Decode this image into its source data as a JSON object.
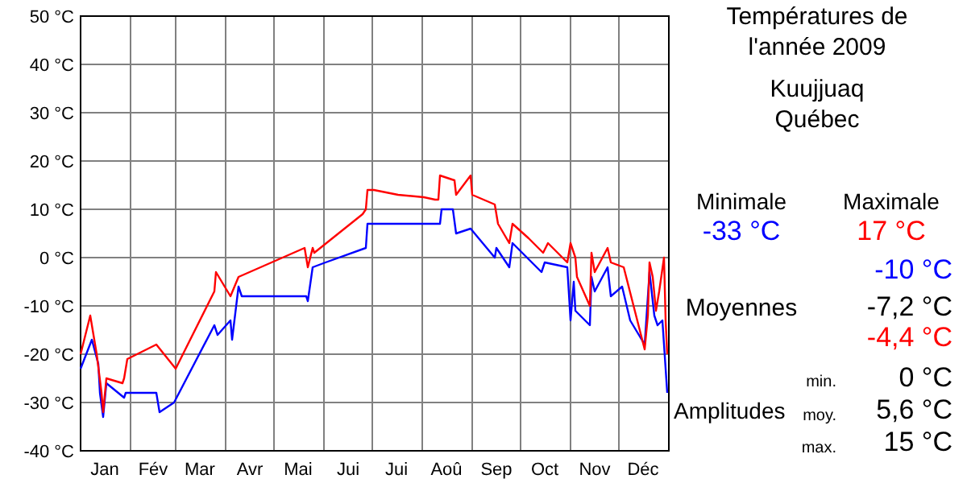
{
  "chart_data": {
    "type": "line",
    "title": "Températures de\nl'année 2009",
    "subtitle": "Kuujjuaq\nQuébec",
    "xlim": [
      "2009-01-01",
      "2010-01-01"
    ],
    "xticks": [
      {
        "value": "2009-01-01",
        "label": null
      },
      {
        "value": "2009-01-16",
        "label": "Jan"
      },
      {
        "value": "2009-02-01",
        "label": null
      },
      {
        "value": "2009-02-15",
        "label": "Fév"
      },
      {
        "value": "2009-03-01",
        "label": null
      },
      {
        "value": "2009-03-16",
        "label": "Mar"
      },
      {
        "value": "2009-04-01",
        "label": null
      },
      {
        "value": "2009-04-16",
        "label": "Avr"
      },
      {
        "value": "2009-05-01",
        "label": null
      },
      {
        "value": "2009-05-16",
        "label": "Mai"
      },
      {
        "value": "2009-06-01",
        "label": null
      },
      {
        "value": "2009-06-16",
        "label": "Jui"
      },
      {
        "value": "2009-07-01",
        "label": null
      },
      {
        "value": "2009-07-16",
        "label": "Jui"
      },
      {
        "value": "2009-08-01",
        "label": null
      },
      {
        "value": "2009-08-16",
        "label": "Aoû"
      },
      {
        "value": "2009-09-01",
        "label": null
      },
      {
        "value": "2009-09-16",
        "label": "Sep"
      },
      {
        "value": "2009-10-01",
        "label": null
      },
      {
        "value": "2009-10-16",
        "label": "Oct"
      },
      {
        "value": "2009-11-01",
        "label": null
      },
      {
        "value": "2009-11-16",
        "label": "Nov"
      },
      {
        "value": "2009-12-01",
        "label": null
      },
      {
        "value": "2009-12-16",
        "label": "Déc"
      },
      {
        "value": "2010-01-01",
        "label": null
      }
    ],
    "ylim": [
      -40,
      50
    ],
    "yticks": [
      {
        "value": -40,
        "label": "-40 °C"
      },
      {
        "value": -30,
        "label": "-30 °C"
      },
      {
        "value": -20,
        "label": "-20 °C"
      },
      {
        "value": -10,
        "label": "-10 °C"
      },
      {
        "value": 0,
        "label": "0 °C"
      },
      {
        "value": 10,
        "label": "10 °C"
      },
      {
        "value": 20,
        "label": "20 °C"
      },
      {
        "value": 30,
        "label": "30 °C"
      },
      {
        "value": 40,
        "label": "40 °C"
      },
      {
        "value": 50,
        "label": "50 °C"
      }
    ],
    "grid": true,
    "marker": "none",
    "line_style": "solid",
    "series": [
      {
        "color": "#0000ff",
        "x": [
          "2009-01-01",
          "2009-01-08",
          "2009-01-12",
          "2009-01-13",
          "2009-01-15",
          "2009-01-17",
          "2009-01-28",
          "2009-01-29",
          "2009-02-17",
          "2009-02-19",
          "2009-02-28",
          "2009-03-25",
          "2009-03-27",
          "2009-04-04",
          "2009-04-05",
          "2009-04-09",
          "2009-04-11",
          "2009-04-12",
          "2009-05-21",
          "2009-05-22",
          "2009-05-25",
          "2009-06-02",
          "2009-06-27",
          "2009-06-28",
          "2009-08-12",
          "2009-08-13",
          "2009-08-20",
          "2009-08-22",
          "2009-08-31",
          "2009-09-15",
          "2009-09-16",
          "2009-09-24",
          "2009-09-26",
          "2009-10-14",
          "2009-10-16",
          "2009-10-30",
          "2009-11-01",
          "2009-11-03",
          "2009-11-04",
          "2009-11-13",
          "2009-11-14",
          "2009-11-16",
          "2009-11-24",
          "2009-11-26",
          "2009-12-03",
          "2009-12-08",
          "2009-12-17",
          "2009-12-20",
          "2009-12-23",
          "2009-12-25",
          "2009-12-28",
          "2009-12-31"
        ],
        "values": [
          -23,
          -17,
          -22,
          -28,
          -33,
          -26,
          -29,
          -28,
          -28,
          -32,
          -30,
          -14,
          -16,
          -13,
          -17,
          -6,
          -8,
          -8,
          -8,
          -9,
          -2,
          -1,
          2,
          7,
          7,
          10,
          10,
          5,
          6,
          0,
          2,
          -2,
          3,
          -3,
          -1,
          -2,
          -13,
          -5,
          -11,
          -14,
          -4,
          -7,
          -2,
          -8,
          -6,
          -13,
          -18,
          -3,
          -12,
          -14,
          -13,
          -28
        ]
      },
      {
        "color": "#ff0000",
        "x": [
          "2009-01-01",
          "2009-01-07",
          "2009-01-11",
          "2009-01-14",
          "2009-01-15",
          "2009-01-17",
          "2009-01-27",
          "2009-01-28",
          "2009-01-30",
          "2009-02-17",
          "2009-03-01",
          "2009-03-25",
          "2009-03-26",
          "2009-04-04",
          "2009-04-09",
          "2009-05-20",
          "2009-05-22",
          "2009-05-25",
          "2009-05-26",
          "2009-06-25",
          "2009-06-27",
          "2009-06-28",
          "2009-07-02",
          "2009-07-17",
          "2009-08-02",
          "2009-08-09",
          "2009-08-11",
          "2009-08-12",
          "2009-08-21",
          "2009-08-22",
          "2009-08-31",
          "2009-09-01",
          "2009-09-15",
          "2009-09-17",
          "2009-09-24",
          "2009-09-26",
          "2009-10-06",
          "2009-10-15",
          "2009-10-18",
          "2009-10-30",
          "2009-11-01",
          "2009-11-04",
          "2009-11-05",
          "2009-11-13",
          "2009-11-14",
          "2009-11-16",
          "2009-11-24",
          "2009-11-26",
          "2009-12-04",
          "2009-12-17",
          "2009-12-19",
          "2009-12-20",
          "2009-12-22",
          "2009-12-24",
          "2009-12-26",
          "2009-12-29",
          "2009-12-30",
          "2009-12-31"
        ],
        "values": [
          -20,
          -12,
          -20,
          -28,
          -32,
          -25,
          -26,
          -25,
          -21,
          -18,
          -23,
          -7,
          -3,
          -8,
          -4,
          2,
          -2,
          2,
          1,
          9,
          10,
          14,
          14,
          13,
          12.5,
          12,
          12,
          17,
          16,
          13,
          17,
          13,
          11,
          7,
          3,
          7,
          4,
          1,
          3,
          -1,
          3,
          0,
          -4,
          -10,
          1,
          -3,
          2,
          -1,
          -2,
          -19,
          -12,
          -1,
          -4,
          -11,
          -7,
          0,
          -13,
          -20
        ]
      }
    ],
    "annotations": [
      "Minimale",
      "Maximale",
      "-33 °C",
      "17 °C",
      "Moyennes",
      "-10 °C",
      "-7,2 °C",
      "-4,4 °C",
      "Amplitudes",
      "min.",
      "0 °C",
      "moy.",
      "5,6 °C",
      "max.",
      "15 °C"
    ]
  }
}
